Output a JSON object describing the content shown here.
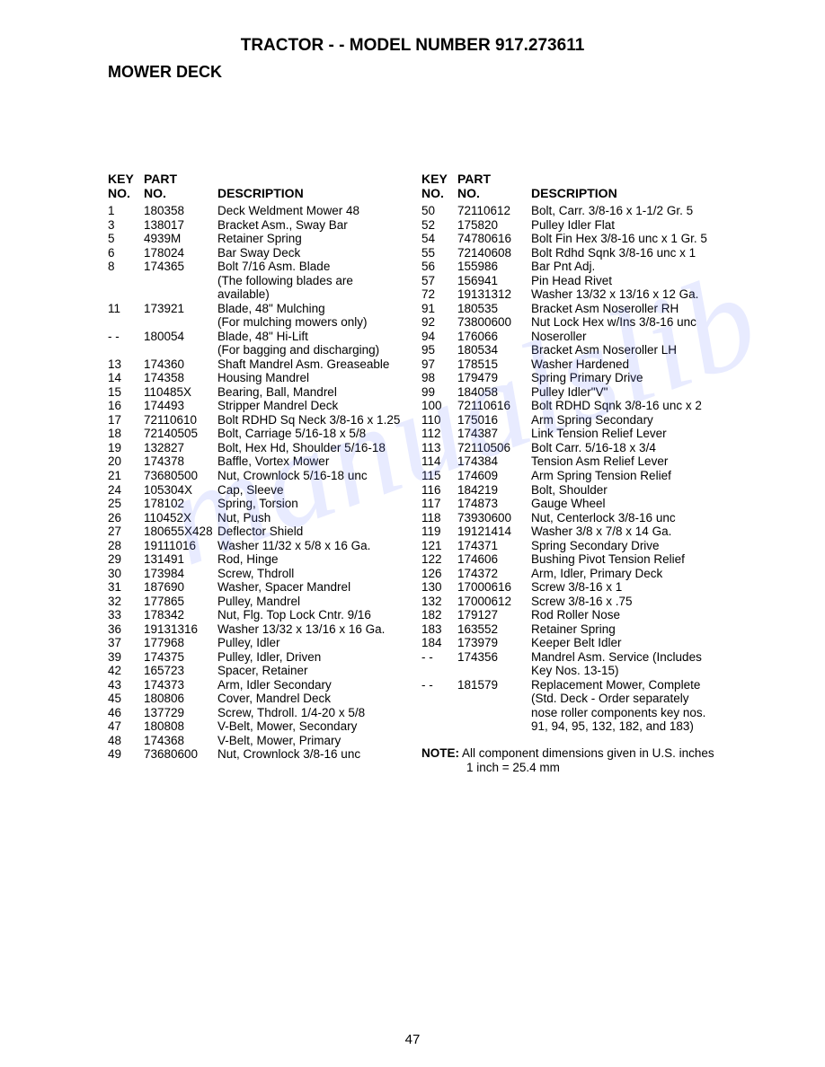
{
  "title": "TRACTOR - - MODEL NUMBER 917.273611",
  "section": "MOWER DECK",
  "header": {
    "key_no_l1": "KEY",
    "key_no_l2": "NO.",
    "part_no_l1": "PART",
    "part_no_l2": "NO.",
    "description": "DESCRIPTION"
  },
  "left_rows": [
    {
      "k": "1",
      "p": "180358",
      "d": "Deck Weldment Mower  48"
    },
    {
      "k": "3",
      "p": "138017",
      "d": "Bracket Asm., Sway Bar"
    },
    {
      "k": "5",
      "p": "4939M",
      "d": "Retainer Spring"
    },
    {
      "k": "6",
      "p": "178024",
      "d": "Bar Sway Deck"
    },
    {
      "k": "8",
      "p": "174365",
      "d": "Bolt 7/16 Asm. Blade"
    },
    {
      "k": "",
      "p": "",
      "d": "(The following blades are"
    },
    {
      "k": "",
      "p": "",
      "d": "available)"
    },
    {
      "k": "11",
      "p": "173921",
      "d": "Blade, 48\" Mulching"
    },
    {
      "k": "",
      "p": "",
      "d": "(For mulching mowers only)"
    },
    {
      "k": "- -",
      "p": "180054",
      "d": "Blade, 48\" Hi-Lift"
    },
    {
      "k": "",
      "p": "",
      "d": "(For bagging and discharging)"
    },
    {
      "k": "13",
      "p": "174360",
      "d": "Shaft Mandrel Asm. Greaseable"
    },
    {
      "k": "14",
      "p": "174358",
      "d": "Housing Mandrel"
    },
    {
      "k": "15",
      "p": "110485X",
      "d": "Bearing, Ball, Mandrel"
    },
    {
      "k": "16",
      "p": "174493",
      "d": "Stripper Mandrel Deck"
    },
    {
      "k": "17",
      "p": "72110610",
      "d": "Bolt RDHD Sq Neck 3/8-16 x 1.25"
    },
    {
      "k": "18",
      "p": "72140505",
      "d": "Bolt, Carriage  5/16-18 x 5/8"
    },
    {
      "k": "19",
      "p": "132827",
      "d": "Bolt, Hex Hd, Shoulder 5/16-18"
    },
    {
      "k": "20",
      "p": "174378",
      "d": "Baffle, Vortex Mower"
    },
    {
      "k": "21",
      "p": "73680500",
      "d": "Nut, Crownlock  5/16-18 unc"
    },
    {
      "k": "24",
      "p": "105304X",
      "d": "Cap, Sleeve"
    },
    {
      "k": "25",
      "p": "178102",
      "d": "Spring, Torsion"
    },
    {
      "k": "26",
      "p": "110452X",
      "d": "Nut, Push"
    },
    {
      "k": "27",
      "p": "180655X428",
      "d": "Deflector Shield"
    },
    {
      "k": "28",
      "p": "19111016",
      "d": "Washer  11/32 x 5/8 x 16 Ga."
    },
    {
      "k": "29",
      "p": "131491",
      "d": "Rod, Hinge"
    },
    {
      "k": "30",
      "p": "173984",
      "d": "Screw, Thdroll"
    },
    {
      "k": "31",
      "p": "187690",
      "d": "Washer, Spacer Mandrel"
    },
    {
      "k": "32",
      "p": "177865",
      "d": "Pulley, Mandrel"
    },
    {
      "k": "33",
      "p": "178342",
      "d": "Nut, Flg. Top Lock Cntr.  9/16"
    },
    {
      "k": "36",
      "p": "19131316",
      "d": "Washer  13/32 x 13/16 x 16 Ga."
    },
    {
      "k": "37",
      "p": "177968",
      "d": "Pulley, Idler"
    },
    {
      "k": "39",
      "p": "174375",
      "d": "Pulley, Idler, Driven"
    },
    {
      "k": "42",
      "p": "165723",
      "d": "Spacer, Retainer"
    },
    {
      "k": "43",
      "p": "174373",
      "d": "Arm, Idler Secondary"
    },
    {
      "k": "45",
      "p": "180806",
      "d": "Cover, Mandrel Deck"
    },
    {
      "k": "46",
      "p": "137729",
      "d": "Screw, Thdroll.  1/4-20 x 5/8"
    },
    {
      "k": "47",
      "p": "180808",
      "d": "V-Belt, Mower, Secondary"
    },
    {
      "k": "48",
      "p": "174368",
      "d": "V-Belt, Mower, Primary"
    },
    {
      "k": "49",
      "p": "73680600",
      "d": "Nut, Crownlock  3/8-16 unc"
    }
  ],
  "right_rows": [
    {
      "k": "50",
      "p": "72110612",
      "d": "Bolt, Carr.  3/8-16 x 1-1/2 Gr. 5"
    },
    {
      "k": "52",
      "p": "175820",
      "d": "Pulley Idler Flat"
    },
    {
      "k": "54",
      "p": "74780616",
      "d": "Bolt Fin Hex 3/8-16 unc x 1 Gr. 5"
    },
    {
      "k": "55",
      "p": "72140608",
      "d": "Bolt Rdhd Sqnk 3/8-16 unc x 1"
    },
    {
      "k": "56",
      "p": "155986",
      "d": "Bar Pnt Adj."
    },
    {
      "k": "57",
      "p": "156941",
      "d": "Pin Head Rivet"
    },
    {
      "k": "72",
      "p": "19131312",
      "d": "Washer 13/32 x 13/16 x 12 Ga."
    },
    {
      "k": "91",
      "p": "180535",
      "d": "Bracket Asm Noseroller RH"
    },
    {
      "k": "92",
      "p": "73800600",
      "d": "Nut Lock Hex w/Ins  3/8-16 unc"
    },
    {
      "k": "94",
      "p": "176066",
      "d": "Noseroller"
    },
    {
      "k": "95",
      "p": "180534",
      "d": "Bracket Asm Noseroller LH"
    },
    {
      "k": "97",
      "p": "178515",
      "d": "Washer Hardened"
    },
    {
      "k": "98",
      "p": "179479",
      "d": "Spring Primary Drive"
    },
    {
      "k": "99",
      "p": "184058",
      "d": "Pulley Idler\"V\""
    },
    {
      "k": "100",
      "p": "72110616",
      "d": "Bolt RDHD Sqnk 3/8-16 unc x 2"
    },
    {
      "k": "110",
      "p": "175016",
      "d": "Arm Spring Secondary"
    },
    {
      "k": "112",
      "p": "174387",
      "d": "Link Tension Relief Lever"
    },
    {
      "k": "113",
      "p": "72110506",
      "d": "Bolt Carr. 5/16-18 x 3/4"
    },
    {
      "k": "114",
      "p": "174384",
      "d": "Tension Asm Relief Lever"
    },
    {
      "k": "115",
      "p": "174609",
      "d": "Arm Spring Tension Relief"
    },
    {
      "k": "116",
      "p": "184219",
      "d": "Bolt, Shoulder"
    },
    {
      "k": "117",
      "p": "174873",
      "d": "Gauge Wheel"
    },
    {
      "k": "118",
      "p": "73930600",
      "d": "Nut, Centerlock  3/8-16 unc"
    },
    {
      "k": "119",
      "p": "19121414",
      "d": "Washer  3/8 x 7/8 x 14 Ga."
    },
    {
      "k": "121",
      "p": "174371",
      "d": "Spring Secondary Drive"
    },
    {
      "k": "122",
      "p": "174606",
      "d": "Bushing Pivot Tension Relief"
    },
    {
      "k": "126",
      "p": "174372",
      "d": "Arm, Idler, Primary Deck"
    },
    {
      "k": "130",
      "p": "17000616",
      "d": "Screw 3/8-16 x 1"
    },
    {
      "k": "132",
      "p": "17000612",
      "d": "Screw 3/8-16 x .75"
    },
    {
      "k": "182",
      "p": "179127",
      "d": "Rod Roller Nose"
    },
    {
      "k": "183",
      "p": "163552",
      "d": "Retainer Spring"
    },
    {
      "k": "184",
      "p": "173979",
      "d": "Keeper Belt Idler"
    },
    {
      "k": "- -",
      "p": "174356",
      "d": "Mandrel Asm. Service (Includes"
    },
    {
      "k": "",
      "p": "",
      "d": "Key Nos. 13-15)"
    },
    {
      "k": "- -",
      "p": "181579",
      "d": "Replacement Mower,  Complete"
    },
    {
      "k": "",
      "p": "",
      "d": "(Std. Deck - Order separately"
    },
    {
      "k": "",
      "p": "",
      "d": "nose roller components key nos."
    },
    {
      "k": "",
      "p": "",
      "d": "91, 94, 95, 132, 182, and 183)"
    }
  ],
  "note_label": "NOTE:",
  "note_text1": "  All component dimensions given in U.S. inches",
  "note_text2": "1 inch = 25.4 mm",
  "page_number": "47",
  "watermark": "manualslib"
}
